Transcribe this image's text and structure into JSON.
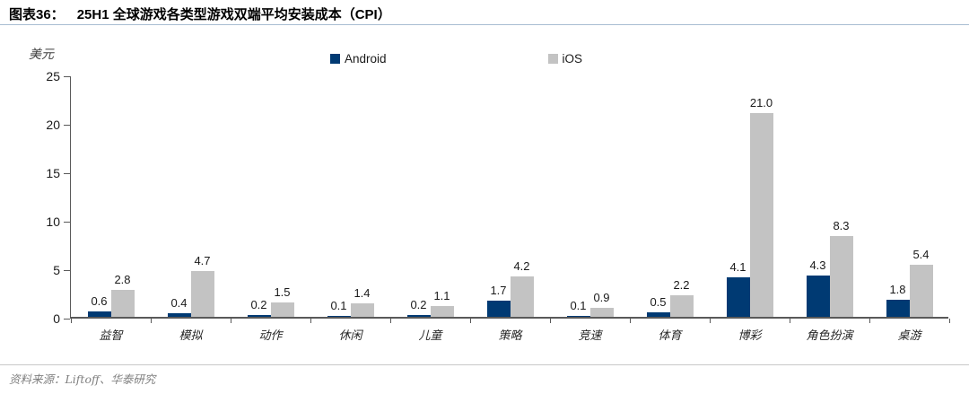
{
  "figure": {
    "label": "图表36：",
    "title": "25H1 全球游戏各类型游戏双端平均安装成本（CPI）"
  },
  "source_note": "资料来源：Liftoff、华泰研究",
  "colors": {
    "android": "#003a73",
    "ios": "#c3c3c3",
    "axis": "#595959",
    "title_rule": "#a8bdd2"
  },
  "chart_data": {
    "type": "bar",
    "title": "25H1 全球游戏各类型游戏双端平均安装成本（CPI）",
    "unit_label": "美元",
    "categories": [
      "益智",
      "模拟",
      "动作",
      "休闲",
      "儿童",
      "策略",
      "竞速",
      "体育",
      "博彩",
      "角色扮演",
      "桌游"
    ],
    "series": [
      {
        "name": "Android",
        "color": "#003a73",
        "values": [
          0.6,
          0.4,
          0.2,
          0.1,
          0.2,
          1.7,
          0.1,
          0.5,
          4.1,
          4.3,
          1.8
        ]
      },
      {
        "name": "iOS",
        "color": "#c3c3c3",
        "values": [
          2.8,
          4.7,
          1.5,
          1.4,
          1.1,
          4.2,
          0.9,
          2.2,
          21.0,
          8.3,
          5.4
        ]
      }
    ],
    "ylim": [
      0,
      25
    ],
    "yticks": [
      0,
      5,
      10,
      15,
      20,
      25
    ],
    "grid": false,
    "legend_position": "top",
    "value_labels": "one-decimal above each bar"
  }
}
